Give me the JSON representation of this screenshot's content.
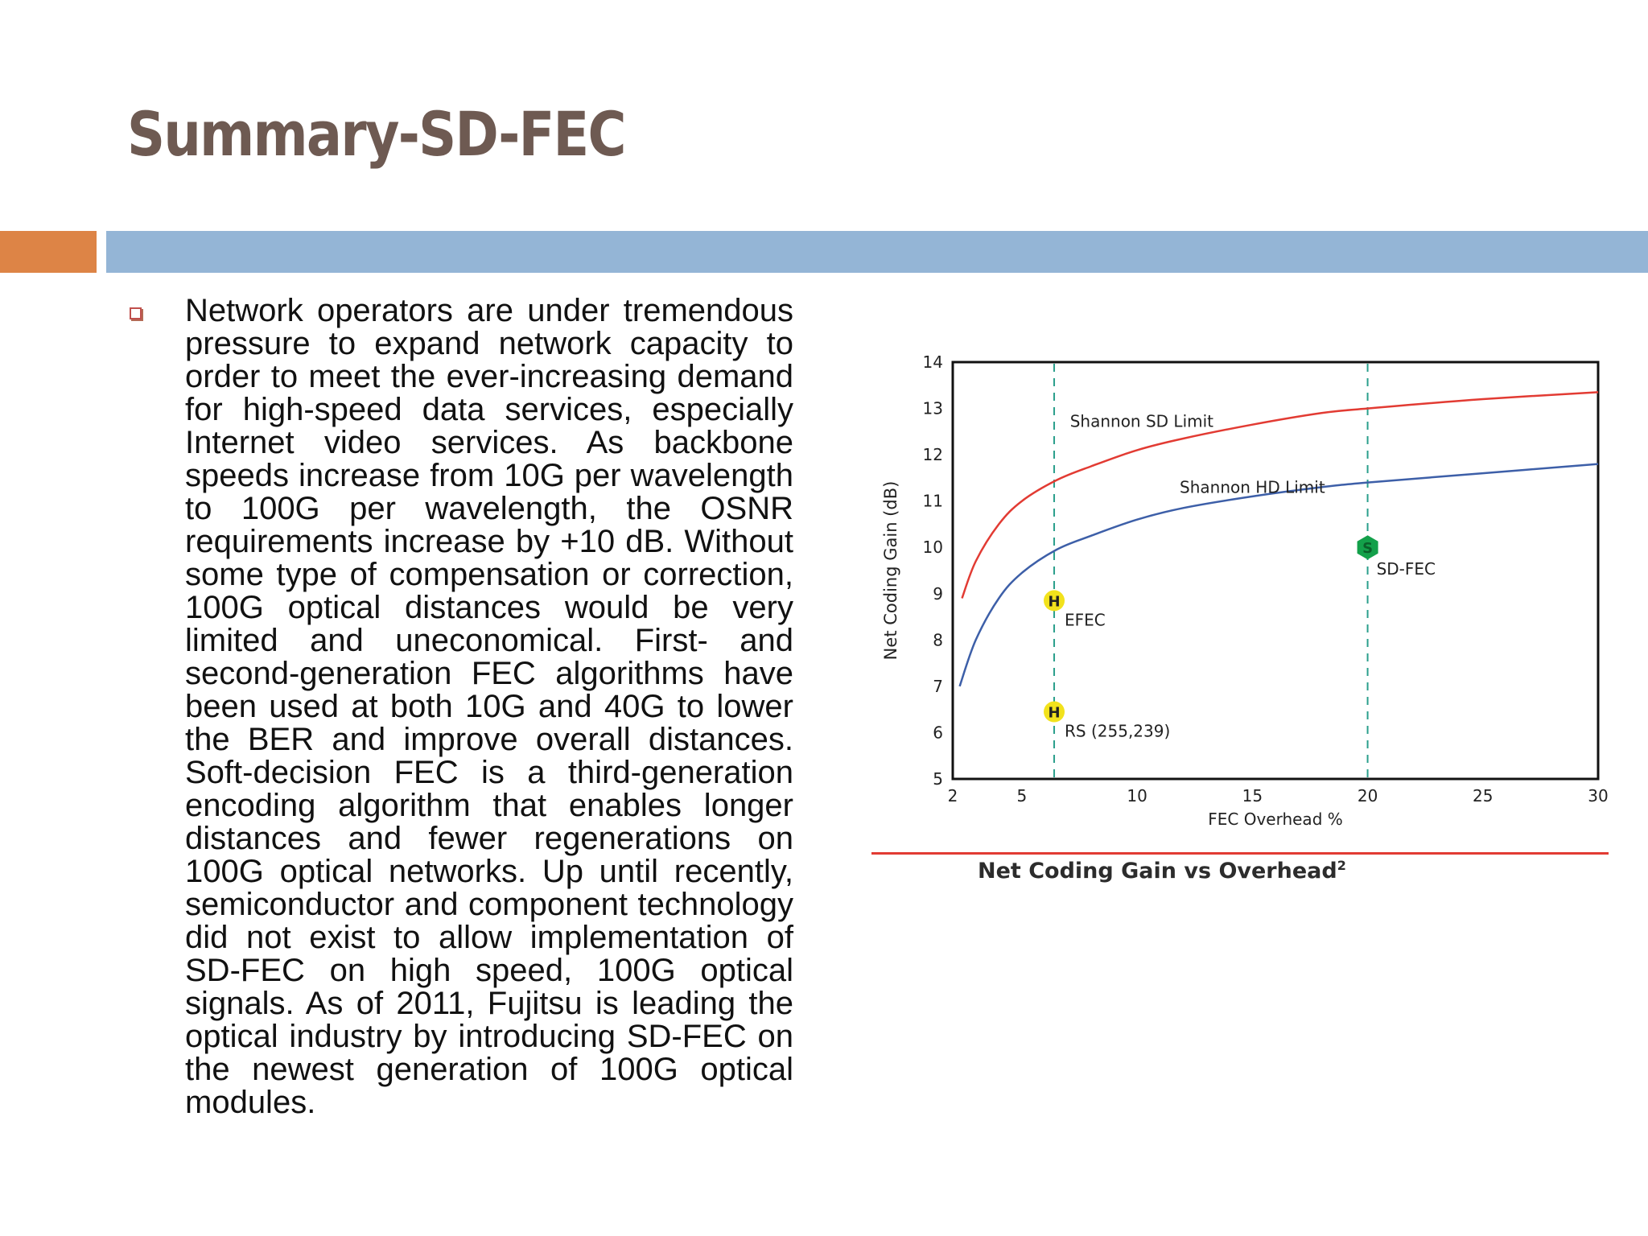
{
  "slide": {
    "title": "Summary-SD-FEC",
    "bullet_text": "Network operators are under tremendous pressure to expand network capacity to order to meet the ever-increasing demand for high-speed data services, especially Internet video services. As backbone speeds increase from 10G per wavelength to 100G per wavelength, the OSNR requirements increase by +10 dB. Without some type of compensation or correction, 100G optical distances would be very limited and uneconomical. First- and second-generation FEC algorithms have been used at both 10G and 40G to lower the BER and improve overall distances. Soft-decision FEC is a third-generation encoding algorithm that enables longer distances and fewer regenerations on 100G optical networks. Up until recently, semiconductor and component technology did not exist to allow implementation of SD-FEC on high speed, 100G optical signals. As of 2011, Fujitsu is leading the optical industry by introducing SD-FEC on the newest generation of 100G optical modules.",
    "caption": "Net Coding Gain vs Overhead",
    "caption_sup": "2"
  },
  "colors": {
    "title": "#6e5a52",
    "accent_orange": "#dd8446",
    "accent_blue": "#94b5d6",
    "sd_limit": "#e23b33",
    "hd_limit": "#3d5fa8",
    "guide": "#2a9f8c",
    "hard_marker": "#f2e21c",
    "soft_marker": "#13a04a"
  },
  "chart_data": {
    "type": "line",
    "xlabel": "FEC Overhead %",
    "ylabel": "Net Coding Gain (dB)",
    "xlim": [
      2,
      30
    ],
    "ylim": [
      5,
      14
    ],
    "xticks": [
      2,
      5,
      10,
      15,
      20,
      25,
      30
    ],
    "yticks": [
      5,
      6,
      7,
      8,
      9,
      10,
      11,
      12,
      13,
      14
    ],
    "grid": false,
    "series": [
      {
        "name": "Shannon SD Limit",
        "x": [
          2.4,
          3,
          4,
          5,
          6.5,
          8,
          10,
          12,
          15,
          18,
          20,
          25,
          30
        ],
        "y": [
          8.9,
          9.7,
          10.5,
          11.0,
          11.45,
          11.75,
          12.1,
          12.35,
          12.65,
          12.9,
          13.0,
          13.2,
          13.35
        ]
      },
      {
        "name": "Shannon HD Limit",
        "x": [
          2.3,
          3,
          4,
          5,
          6.5,
          8,
          10,
          12,
          15,
          18,
          20,
          25,
          30
        ],
        "y": [
          7.0,
          8.0,
          8.9,
          9.45,
          9.95,
          10.25,
          10.6,
          10.85,
          11.1,
          11.3,
          11.4,
          11.6,
          11.8
        ]
      }
    ],
    "guides": [
      6.4,
      20
    ],
    "points": [
      {
        "label": "EFEC",
        "marker": "H",
        "x": 6.4,
        "y": 8.85
      },
      {
        "label": "RS (255,239)",
        "marker": "H",
        "x": 6.4,
        "y": 6.45
      },
      {
        "label": "SD-FEC",
        "marker": "S",
        "x": 20,
        "y": 10.0
      }
    ]
  }
}
